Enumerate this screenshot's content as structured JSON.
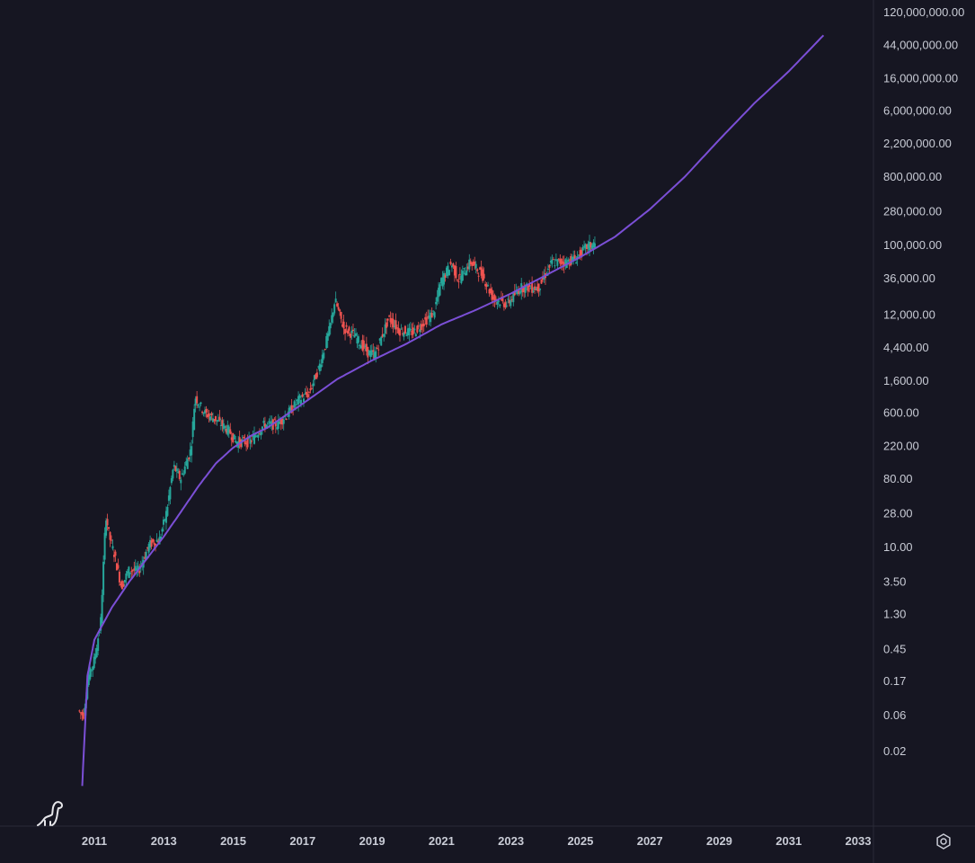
{
  "colors": {
    "background": "#161622",
    "grid_line": "#2a2b38",
    "axis_text": "#c9ccd6",
    "model_curve": "#7b4fd6",
    "candle_up": "#26a69a",
    "candle_down": "#ef5350"
  },
  "icons": {
    "logo": "dinosaur-icon",
    "settings": "gear-icon"
  },
  "chart_data": {
    "type": "line",
    "yscale": "log",
    "title": "",
    "xlabel": "",
    "ylabel": "",
    "grid": false,
    "y_ticks": [
      {
        "value": 120000000,
        "label": "120,000,000.00"
      },
      {
        "value": 44000000,
        "label": "44,000,000.00"
      },
      {
        "value": 16000000,
        "label": "16,000,000.00"
      },
      {
        "value": 6000000,
        "label": "6,000,000.00"
      },
      {
        "value": 2200000,
        "label": "2,200,000.00"
      },
      {
        "value": 800000,
        "label": "800,000.00"
      },
      {
        "value": 280000,
        "label": "280,000.00"
      },
      {
        "value": 100000,
        "label": "100,000.00"
      },
      {
        "value": 36000,
        "label": "36,000.00"
      },
      {
        "value": 12000,
        "label": "12,000.00"
      },
      {
        "value": 4400,
        "label": "4,400.00"
      },
      {
        "value": 1600,
        "label": "1,600.00"
      },
      {
        "value": 600,
        "label": "600.00"
      },
      {
        "value": 220,
        "label": "220.00"
      },
      {
        "value": 80,
        "label": "80.00"
      },
      {
        "value": 28,
        "label": "28.00"
      },
      {
        "value": 10,
        "label": "10.00"
      },
      {
        "value": 3.5,
        "label": "3.50"
      },
      {
        "value": 1.3,
        "label": "1.30"
      },
      {
        "value": 0.45,
        "label": "0.45"
      },
      {
        "value": 0.17,
        "label": "0.17"
      },
      {
        "value": 0.06,
        "label": "0.06"
      },
      {
        "value": 0.02,
        "label": "0.02"
      }
    ],
    "x_ticks": [
      "2011",
      "2013",
      "2015",
      "2017",
      "2019",
      "2021",
      "2023",
      "2025",
      "2027",
      "2029",
      "2031",
      "2033"
    ],
    "xlim": [
      2010.3,
      2033.5
    ],
    "series": [
      {
        "type": "candlestick",
        "x": [
          2010.55,
          2010.7,
          2010.85,
          2011.0,
          2011.2,
          2011.35,
          2011.45,
          2011.6,
          2011.8,
          2012.0,
          2012.3,
          2012.6,
          2012.9,
          2013.1,
          2013.3,
          2013.5,
          2013.8,
          2013.92,
          2014.2,
          2014.5,
          2014.9,
          2015.1,
          2015.5,
          2015.9,
          2016.3,
          2016.6,
          2016.9,
          2017.2,
          2017.5,
          2017.8,
          2017.95,
          2018.2,
          2018.5,
          2018.9,
          2019.1,
          2019.5,
          2019.8,
          2020.2,
          2020.5,
          2020.8,
          2021.0,
          2021.3,
          2021.5,
          2021.85,
          2022.2,
          2022.5,
          2022.9,
          2023.3,
          2023.8,
          2024.2,
          2024.6,
          2024.9,
          2025.2,
          2025.4
        ],
        "values": [
          0.07,
          0.06,
          0.2,
          0.3,
          1.0,
          28,
          14,
          8,
          3,
          5,
          5,
          11,
          13,
          30,
          120,
          80,
          200,
          1000,
          600,
          500,
          350,
          250,
          250,
          420,
          430,
          600,
          900,
          1100,
          2500,
          8000,
          19000,
          8000,
          6500,
          3800,
          3600,
          11000,
          7500,
          7000,
          9500,
          13000,
          33000,
          58000,
          35000,
          60000,
          40000,
          20000,
          16500,
          28000,
          27000,
          60000,
          60000,
          68000,
          95000,
          105000
        ]
      },
      {
        "type": "line",
        "x": [
          2010.65,
          2010.8,
          2011.0,
          2011.5,
          2012.0,
          2012.5,
          2013.0,
          2013.5,
          2014.0,
          2014.5,
          2015.0,
          2015.5,
          2016.0,
          2017.0,
          2018.0,
          2019.0,
          2020.0,
          2021.0,
          2022.0,
          2023.0,
          2024.0,
          2025.0,
          2026.0,
          2027.0,
          2028.0,
          2029.0,
          2030.0,
          2031.0,
          2032.0
        ],
        "values": [
          0.007,
          0.2,
          0.6,
          1.6,
          3.5,
          7,
          14,
          30,
          65,
          130,
          210,
          300,
          390,
          800,
          1700,
          3000,
          5000,
          9000,
          14000,
          23000,
          40000,
          70000,
          130000,
          300000,
          800000,
          2500000,
          7500000,
          20000000,
          60000000
        ]
      }
    ]
  }
}
